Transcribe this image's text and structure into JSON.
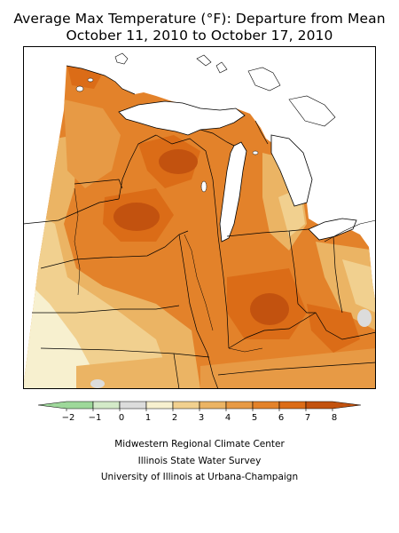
{
  "title_line1": "Average Max Temperature (°F): Departure from Mean",
  "title_line2": "October 11, 2010 to October 17, 2010",
  "legend": {
    "ticks": [
      "−2",
      "−1",
      "0",
      "1",
      "2",
      "3",
      "4",
      "5",
      "6",
      "7",
      "8"
    ],
    "colors": [
      "#9ed89a",
      "#d3eac8",
      "#dcdcdc",
      "#f7f0cf",
      "#f1d08f",
      "#ebb464",
      "#e79a45",
      "#e3822a",
      "#db6c17",
      "#c2520f"
    ]
  },
  "map": {
    "outline_color": "#000000",
    "water_color": "#ffffff",
    "base_color": "#e3822a"
  },
  "credits": [
    "Midwestern Regional Climate Center",
    "Illinois State Water Survey",
    "University of Illinois at Urbana-Champaign"
  ]
}
